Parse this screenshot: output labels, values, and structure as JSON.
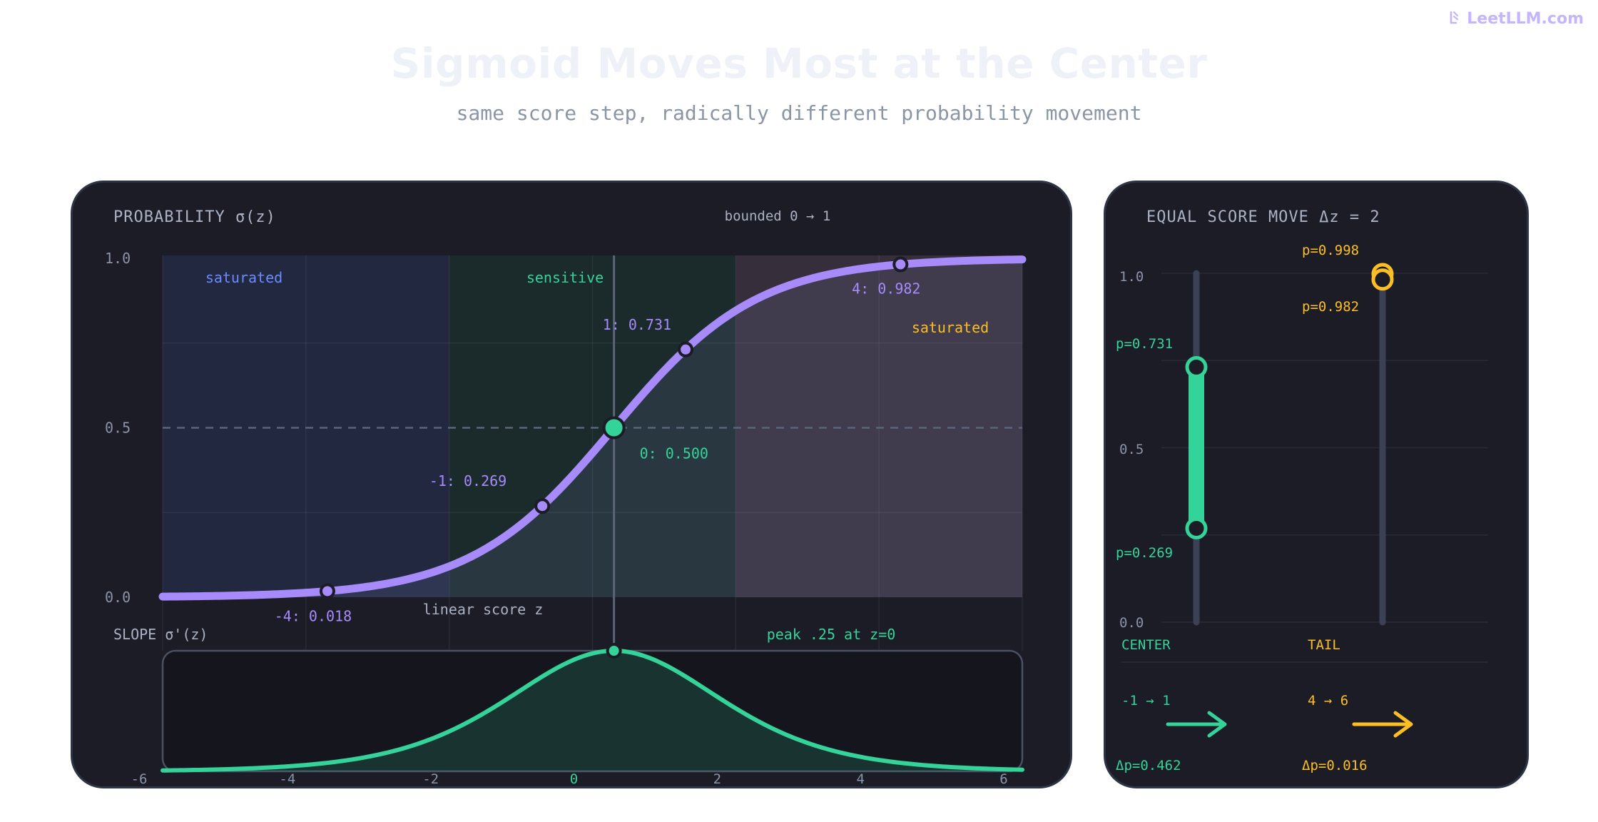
{
  "brand": {
    "icon": "leetllm-logo-icon",
    "label": "LeetLLM.com"
  },
  "title": "Sigmoid Moves Most at the Center",
  "subtitle": "same score step, radically different probability movement",
  "colors": {
    "purple": "#a78bfa",
    "green": "#34d399",
    "amber": "#fbbf24",
    "blue": "#6b8cff",
    "panel": "#1c1c26",
    "axis": "#8a93a8"
  },
  "left_panel": {
    "header": "PROBABILITY σ(z)",
    "note": "bounded 0 → 1",
    "region_labels": {
      "left": "saturated",
      "center": "sensitive",
      "right": "saturated"
    },
    "xlabel": "linear score z",
    "slope_label": "SLOPE σ'(z)",
    "peak_label": "peak .25 at z=0"
  },
  "right_panel": {
    "header": "EQUAL SCORE MOVE Δz = 2",
    "y_ticks": [
      "1.0",
      "0.5",
      "0.0"
    ],
    "center": {
      "label": "CENTER",
      "range": "-1 → 1",
      "p_low": "p=0.269",
      "p_high": "p=0.731",
      "delta": "Δp=0.462"
    },
    "tail": {
      "label": "TAIL",
      "range": "4 → 6",
      "p_low": "p=0.982",
      "p_high": "p=0.998",
      "delta": "Δp=0.016"
    }
  },
  "chart_data": [
    {
      "type": "line",
      "title": "PROBABILITY σ(z)",
      "xlabel": "linear score z",
      "ylabel": "",
      "xlim": [
        -6,
        6
      ],
      "ylim": [
        0,
        1
      ],
      "x_ticks": [
        "-6",
        "-4",
        "-2",
        "0",
        "2",
        "4",
        "6"
      ],
      "y_ticks": [
        "0.0",
        "0.5",
        "1.0"
      ],
      "series": [
        {
          "function": "sigmoid",
          "x_range": [
            -6,
            6
          ],
          "y_range": [
            0.002,
            0.998
          ]
        }
      ],
      "points": [
        {
          "z": -4,
          "p": 0.018,
          "label": "-4: 0.018"
        },
        {
          "z": -1,
          "p": 0.269,
          "label": "-1: 0.269"
        },
        {
          "z": 0,
          "p": 0.5,
          "label": "0: 0.500"
        },
        {
          "z": 1,
          "p": 0.731,
          "label": "1: 0.731"
        },
        {
          "z": 4,
          "p": 0.982,
          "label": "4: 0.982"
        }
      ],
      "reference_line": {
        "y": 0.5,
        "style": "dashed"
      },
      "grid": true
    },
    {
      "type": "area",
      "title": "SLOPE σ'(z)",
      "xlim": [
        -6,
        6
      ],
      "series": [
        {
          "function": "sigmoid-derivative",
          "x_range": [
            -6,
            6
          ],
          "peak": {
            "z": 0,
            "value": 0.25
          }
        }
      ]
    },
    {
      "type": "bar",
      "title": "EQUAL SCORE MOVE Δz = 2",
      "categories": [
        "CENTER",
        "TAIL"
      ],
      "ylim": [
        0,
        1
      ],
      "ranges": [
        {
          "name": "CENTER",
          "from": 0.269,
          "to": 0.731,
          "delta": 0.462
        },
        {
          "name": "TAIL",
          "from": 0.982,
          "to": 0.998,
          "delta": 0.016
        }
      ]
    }
  ]
}
